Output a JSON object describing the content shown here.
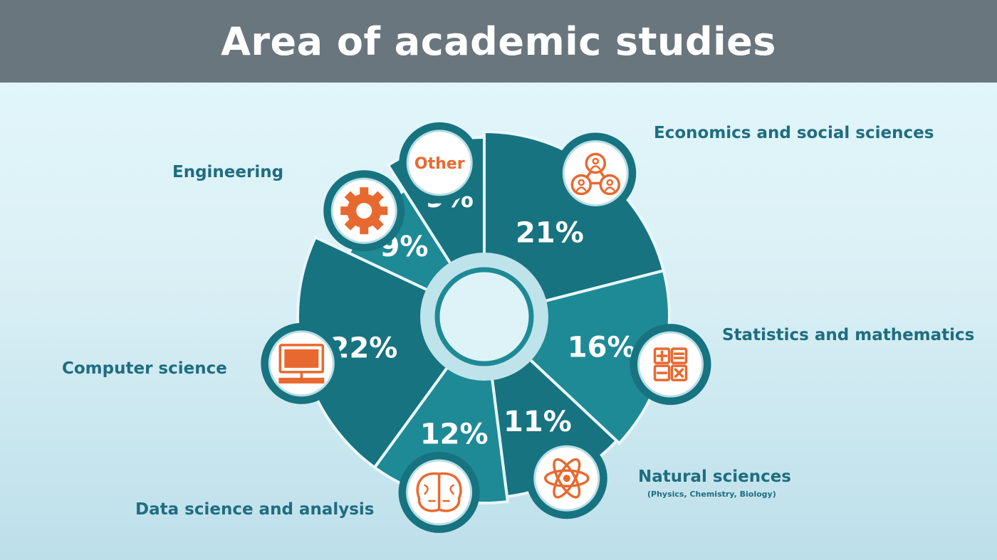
{
  "header": {
    "title": "Area of academic studies"
  },
  "colors": {
    "header_bg": "#6a767d",
    "segment": "#1e8a96",
    "segment_dark": "#177380",
    "label_text": "#1f6d80",
    "icon_orange": "#e8692f",
    "percent_text": "#ffffff"
  },
  "chart_data": {
    "type": "pie",
    "title": "Area of academic studies",
    "categories": [
      "Economics and social sciences",
      "Statistics and mathematics",
      "Natural sciences",
      "Data science and analysis",
      "Computer science",
      "Engineering",
      "Other"
    ],
    "values": [
      21,
      16,
      11,
      12,
      22,
      9,
      9
    ],
    "value_labels": [
      "21%",
      "16%",
      "11%",
      "12%",
      "22%",
      "9%",
      "9%"
    ],
    "notes": {
      "Natural sciences": "(Physics, Chemistry, Biology)"
    },
    "icons": [
      "people-network-icon",
      "calculator-icon",
      "atom-icon",
      "brain-icon",
      "computer-icon",
      "gear-icon",
      "other-badge"
    ],
    "other_badge_text": "Other"
  }
}
